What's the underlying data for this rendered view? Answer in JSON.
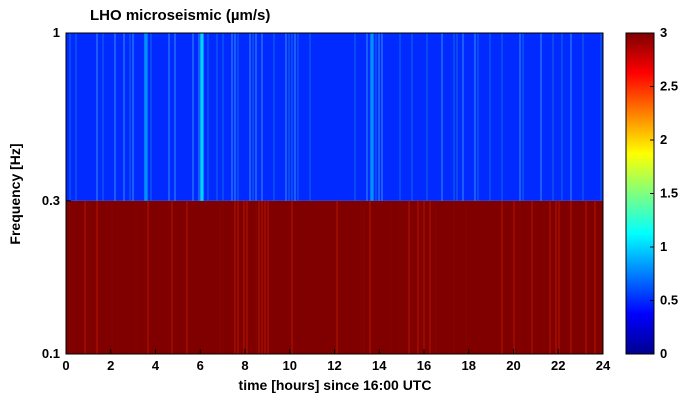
{
  "chart_data": {
    "type": "heatmap",
    "title": "LHO microseismic (µm/s)",
    "xlabel": "time [hours] since 16:00 UTC",
    "ylabel": "Frequency [Hz]",
    "xlim": [
      0,
      24
    ],
    "x_ticks": [
      "0",
      "2",
      "4",
      "6",
      "8",
      "10",
      "12",
      "14",
      "16",
      "18",
      "20",
      "22",
      "24"
    ],
    "y_ticks": [
      "0.1",
      "0.3",
      "1"
    ],
    "y_scale": "log",
    "bands": [
      {
        "f_low": 0.1,
        "f_high": 0.3,
        "baseline_value": 3.0
      },
      {
        "f_low": 0.3,
        "f_high": 1.0,
        "baseline_value": 0.5
      }
    ],
    "highlights": [
      {
        "band": 1,
        "t_start": 6.0,
        "t_end": 6.15,
        "value": 1.0
      },
      {
        "band": 1,
        "t_start": 3.5,
        "t_end": 3.65,
        "value": 0.8
      },
      {
        "band": 1,
        "t_start": 13.6,
        "t_end": 13.75,
        "value": 0.8
      }
    ],
    "colorbar": {
      "range": [
        0,
        3
      ],
      "ticks": [
        "0",
        "0.5",
        "1",
        "1.5",
        "2",
        "2.5",
        "3"
      ],
      "colormap": "jet"
    }
  }
}
